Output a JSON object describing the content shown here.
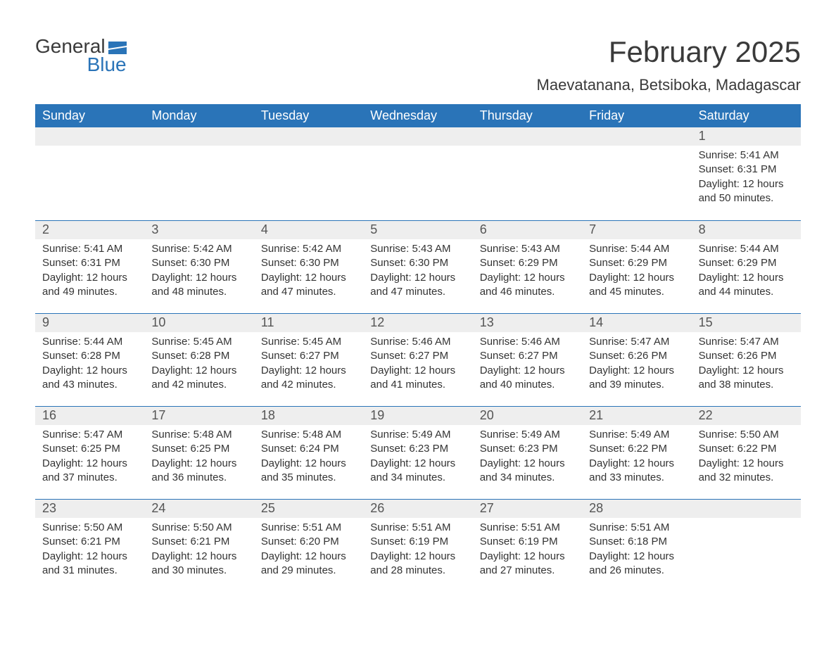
{
  "brand": {
    "general": "General",
    "blue": "Blue"
  },
  "title": "February 2025",
  "location": "Maevatanana, Betsiboka, Madagascar",
  "colors": {
    "header_bg": "#2a74b8",
    "header_text": "#ffffff",
    "daynum_bg": "#eeeeee",
    "daynum_text": "#555555",
    "body_text": "#333333",
    "background": "#ffffff",
    "divider": "#2a74b8"
  },
  "fonts": {
    "title_size_pt": 32,
    "location_size_pt": 17,
    "weekday_size_pt": 14,
    "daynum_size_pt": 14,
    "body_size_pt": 11
  },
  "weekdays": [
    "Sunday",
    "Monday",
    "Tuesday",
    "Wednesday",
    "Thursday",
    "Friday",
    "Saturday"
  ],
  "labels": {
    "sunrise": "Sunrise:",
    "sunset": "Sunset:",
    "daylight": "Daylight:"
  },
  "weeks": [
    [
      null,
      null,
      null,
      null,
      null,
      null,
      {
        "n": "1",
        "sunrise": "5:41 AM",
        "sunset": "6:31 PM",
        "daylight1": "12 hours",
        "daylight2": "and 50 minutes."
      }
    ],
    [
      {
        "n": "2",
        "sunrise": "5:41 AM",
        "sunset": "6:31 PM",
        "daylight1": "12 hours",
        "daylight2": "and 49 minutes."
      },
      {
        "n": "3",
        "sunrise": "5:42 AM",
        "sunset": "6:30 PM",
        "daylight1": "12 hours",
        "daylight2": "and 48 minutes."
      },
      {
        "n": "4",
        "sunrise": "5:42 AM",
        "sunset": "6:30 PM",
        "daylight1": "12 hours",
        "daylight2": "and 47 minutes."
      },
      {
        "n": "5",
        "sunrise": "5:43 AM",
        "sunset": "6:30 PM",
        "daylight1": "12 hours",
        "daylight2": "and 47 minutes."
      },
      {
        "n": "6",
        "sunrise": "5:43 AM",
        "sunset": "6:29 PM",
        "daylight1": "12 hours",
        "daylight2": "and 46 minutes."
      },
      {
        "n": "7",
        "sunrise": "5:44 AM",
        "sunset": "6:29 PM",
        "daylight1": "12 hours",
        "daylight2": "and 45 minutes."
      },
      {
        "n": "8",
        "sunrise": "5:44 AM",
        "sunset": "6:29 PM",
        "daylight1": "12 hours",
        "daylight2": "and 44 minutes."
      }
    ],
    [
      {
        "n": "9",
        "sunrise": "5:44 AM",
        "sunset": "6:28 PM",
        "daylight1": "12 hours",
        "daylight2": "and 43 minutes."
      },
      {
        "n": "10",
        "sunrise": "5:45 AM",
        "sunset": "6:28 PM",
        "daylight1": "12 hours",
        "daylight2": "and 42 minutes."
      },
      {
        "n": "11",
        "sunrise": "5:45 AM",
        "sunset": "6:27 PM",
        "daylight1": "12 hours",
        "daylight2": "and 42 minutes."
      },
      {
        "n": "12",
        "sunrise": "5:46 AM",
        "sunset": "6:27 PM",
        "daylight1": "12 hours",
        "daylight2": "and 41 minutes."
      },
      {
        "n": "13",
        "sunrise": "5:46 AM",
        "sunset": "6:27 PM",
        "daylight1": "12 hours",
        "daylight2": "and 40 minutes."
      },
      {
        "n": "14",
        "sunrise": "5:47 AM",
        "sunset": "6:26 PM",
        "daylight1": "12 hours",
        "daylight2": "and 39 minutes."
      },
      {
        "n": "15",
        "sunrise": "5:47 AM",
        "sunset": "6:26 PM",
        "daylight1": "12 hours",
        "daylight2": "and 38 minutes."
      }
    ],
    [
      {
        "n": "16",
        "sunrise": "5:47 AM",
        "sunset": "6:25 PM",
        "daylight1": "12 hours",
        "daylight2": "and 37 minutes."
      },
      {
        "n": "17",
        "sunrise": "5:48 AM",
        "sunset": "6:25 PM",
        "daylight1": "12 hours",
        "daylight2": "and 36 minutes."
      },
      {
        "n": "18",
        "sunrise": "5:48 AM",
        "sunset": "6:24 PM",
        "daylight1": "12 hours",
        "daylight2": "and 35 minutes."
      },
      {
        "n": "19",
        "sunrise": "5:49 AM",
        "sunset": "6:23 PM",
        "daylight1": "12 hours",
        "daylight2": "and 34 minutes."
      },
      {
        "n": "20",
        "sunrise": "5:49 AM",
        "sunset": "6:23 PM",
        "daylight1": "12 hours",
        "daylight2": "and 34 minutes."
      },
      {
        "n": "21",
        "sunrise": "5:49 AM",
        "sunset": "6:22 PM",
        "daylight1": "12 hours",
        "daylight2": "and 33 minutes."
      },
      {
        "n": "22",
        "sunrise": "5:50 AM",
        "sunset": "6:22 PM",
        "daylight1": "12 hours",
        "daylight2": "and 32 minutes."
      }
    ],
    [
      {
        "n": "23",
        "sunrise": "5:50 AM",
        "sunset": "6:21 PM",
        "daylight1": "12 hours",
        "daylight2": "and 31 minutes."
      },
      {
        "n": "24",
        "sunrise": "5:50 AM",
        "sunset": "6:21 PM",
        "daylight1": "12 hours",
        "daylight2": "and 30 minutes."
      },
      {
        "n": "25",
        "sunrise": "5:51 AM",
        "sunset": "6:20 PM",
        "daylight1": "12 hours",
        "daylight2": "and 29 minutes."
      },
      {
        "n": "26",
        "sunrise": "5:51 AM",
        "sunset": "6:19 PM",
        "daylight1": "12 hours",
        "daylight2": "and 28 minutes."
      },
      {
        "n": "27",
        "sunrise": "5:51 AM",
        "sunset": "6:19 PM",
        "daylight1": "12 hours",
        "daylight2": "and 27 minutes."
      },
      {
        "n": "28",
        "sunrise": "5:51 AM",
        "sunset": "6:18 PM",
        "daylight1": "12 hours",
        "daylight2": "and 26 minutes."
      },
      null
    ]
  ]
}
